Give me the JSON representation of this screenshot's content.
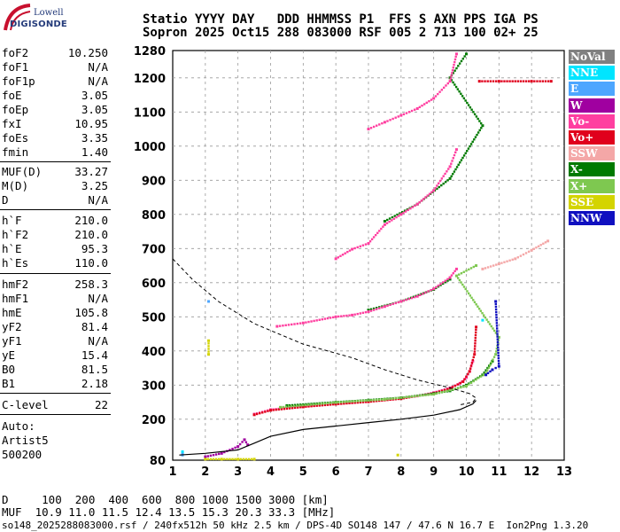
{
  "logo": {
    "top": "Lowell",
    "bottom": "DIGISONDE",
    "color": "#c8102e"
  },
  "header": {
    "line1": "Statio YYYY DAY   DDD HHMMSS P1  FFS S AXN PPS IGA PS",
    "line2": "Sopron 2025 Oct15 288 083000 RSF 005 2 713 100 02+ 25"
  },
  "params": {
    "group1": [
      {
        "k": "foF2",
        "v": "10.250"
      },
      {
        "k": "foF1",
        "v": "N/A"
      },
      {
        "k": "foF1p",
        "v": "N/A"
      },
      {
        "k": "foE",
        "v": "3.05"
      },
      {
        "k": "foEp",
        "v": "3.05"
      },
      {
        "k": "fxI",
        "v": "10.95"
      },
      {
        "k": "foEs",
        "v": "3.35"
      },
      {
        "k": "fmin",
        "v": "1.40"
      }
    ],
    "group2": [
      {
        "k": "MUF(D)",
        "v": "33.27"
      },
      {
        "k": "M(D)",
        "v": "3.25"
      },
      {
        "k": "D",
        "v": "N/A"
      }
    ],
    "group3": [
      {
        "k": "h`F",
        "v": "210.0"
      },
      {
        "k": "h`F2",
        "v": "210.0"
      },
      {
        "k": "h`E",
        "v": "95.3"
      },
      {
        "k": "h`Es",
        "v": "110.0"
      }
    ],
    "group4": [
      {
        "k": "hmF2",
        "v": "258.3"
      },
      {
        "k": "hmF1",
        "v": "N/A"
      },
      {
        "k": "hmE",
        "v": "105.8"
      },
      {
        "k": "yF2",
        "v": "81.4"
      },
      {
        "k": "yF1",
        "v": "N/A"
      },
      {
        "k": "yE",
        "v": "15.4"
      },
      {
        "k": "B0",
        "v": "81.5"
      },
      {
        "k": "B1",
        "v": "2.18"
      }
    ],
    "group5": [
      {
        "k": "C-level",
        "v": "22"
      }
    ]
  },
  "auto": {
    "line1": "Auto:",
    "line2": "Artist5",
    "line3": "500200"
  },
  "legend": [
    {
      "label": "NoVal",
      "color": "#808080"
    },
    {
      "label": "NNE",
      "color": "#00e5ff"
    },
    {
      "label": "E",
      "color": "#4da6ff"
    },
    {
      "label": "W",
      "color": "#a000a0"
    },
    {
      "label": "Vo-",
      "color": "#ff3fa0"
    },
    {
      "label": "Vo+",
      "color": "#e0001c"
    },
    {
      "label": "SSW",
      "color": "#f4a7a7"
    },
    {
      "label": "X-",
      "color": "#007a00"
    },
    {
      "label": "X+",
      "color": "#7ec850"
    },
    {
      "label": "SSE",
      "color": "#d4d400"
    },
    {
      "label": "NNW",
      "color": "#1010c0"
    }
  ],
  "footer": {
    "line1": "D     100  200  400  600  800 1000 1500 3000 [km]",
    "line2": "MUF  10.9 11.0 11.5 12.4 13.5 15.3 20.3 33.3 [MHz]",
    "line3": "so148_2025288083000.rsf / 240fx512h 50 kHz 2.5 km / DPS-4D SO148 147 / 47.6 N 16.7 E  Ion2Png 1.3.20"
  },
  "chart_data": {
    "type": "scatter",
    "xlim": [
      1,
      13
    ],
    "ylim": [
      80,
      1280
    ],
    "x_ticks": [
      1,
      2,
      3,
      4,
      5,
      6,
      7,
      8,
      9,
      10,
      11,
      12,
      13
    ],
    "y_ticks": [
      80,
      200,
      300,
      400,
      500,
      600,
      700,
      800,
      900,
      1000,
      1100,
      1200,
      1280
    ],
    "grid": "dashed",
    "legend_position": "right",
    "series": [
      {
        "name": "Vo-",
        "color": "#ff3fa0",
        "points": [
          [
            3.5,
            215
          ],
          [
            4,
            228
          ],
          [
            5,
            238
          ],
          [
            6,
            246
          ],
          [
            7,
            252
          ],
          [
            8,
            262
          ],
          [
            8.5,
            268
          ],
          [
            9,
            278
          ],
          [
            9.5,
            292
          ],
          [
            9.8,
            305
          ],
          [
            10,
            322
          ],
          [
            10.1,
            340
          ],
          [
            10.2,
            370
          ]
        ]
      },
      {
        "name": "Vo+",
        "color": "#e0001c",
        "points": [
          [
            3.5,
            213
          ],
          [
            4,
            226
          ],
          [
            5,
            236
          ],
          [
            6,
            244
          ],
          [
            7,
            251
          ],
          [
            8,
            260
          ],
          [
            9,
            276
          ],
          [
            9.5,
            290
          ],
          [
            9.9,
            310
          ],
          [
            10.1,
            340
          ],
          [
            10.25,
            390
          ],
          [
            10.3,
            470
          ],
          [
            10.4,
            1190
          ],
          [
            11,
            1190
          ],
          [
            12,
            1190
          ],
          [
            12.6,
            1190
          ]
        ]
      },
      {
        "name": "X-",
        "color": "#007a00",
        "points": [
          [
            4.5,
            240
          ],
          [
            6,
            250
          ],
          [
            7,
            256
          ],
          [
            8,
            263
          ],
          [
            9,
            275
          ],
          [
            9.5,
            283
          ],
          [
            10,
            300
          ],
          [
            10.5,
            330
          ],
          [
            10.8,
            370
          ],
          [
            7,
            520
          ],
          [
            8,
            545
          ],
          [
            9,
            580
          ],
          [
            9.5,
            610
          ],
          [
            7.5,
            780
          ],
          [
            8.5,
            830
          ],
          [
            9.5,
            905
          ],
          [
            10.5,
            1060
          ],
          [
            9.5,
            1200
          ],
          [
            10,
            1270
          ]
        ]
      },
      {
        "name": "X+",
        "color": "#7ec850",
        "points": [
          [
            4.3,
            235
          ],
          [
            6,
            249
          ],
          [
            7.5,
            258
          ],
          [
            9,
            273
          ],
          [
            10,
            297
          ],
          [
            10.6,
            335
          ],
          [
            10.9,
            390
          ],
          [
            11,
            440
          ],
          [
            9.7,
            620
          ],
          [
            10.3,
            650
          ]
        ]
      },
      {
        "name": "W",
        "color": "#a000a0",
        "points": [
          [
            2,
            90
          ],
          [
            2.5,
            100
          ],
          [
            3,
            120
          ],
          [
            3.2,
            140
          ],
          [
            3.3,
            125
          ]
        ]
      },
      {
        "name": "SSW",
        "color": "#f4a7a7",
        "points": [
          [
            10.5,
            640
          ],
          [
            11,
            655
          ],
          [
            11.5,
            670
          ],
          [
            12,
            695
          ],
          [
            12.5,
            722
          ]
        ]
      },
      {
        "name": "SSE",
        "color": "#d4d400",
        "points": [
          [
            2,
            83
          ],
          [
            2.5,
            83
          ],
          [
            3,
            83
          ],
          [
            3.5,
            83
          ],
          [
            2.1,
            390
          ],
          [
            2.1,
            430
          ],
          [
            7.9,
            95
          ]
        ]
      },
      {
        "name": "NNW",
        "color": "#1010c0",
        "points": [
          [
            10.6,
            330
          ],
          [
            10.8,
            345
          ],
          [
            11,
            355
          ],
          [
            10.9,
            545
          ]
        ]
      },
      {
        "name": "E",
        "color": "#4da6ff",
        "points": [
          [
            1.3,
            100
          ],
          [
            1.3,
            95
          ],
          [
            2.1,
            545
          ]
        ]
      },
      {
        "name": "NNE",
        "color": "#00e5ff",
        "points": [
          [
            1.3,
            105
          ],
          [
            10.5,
            490
          ]
        ]
      },
      {
        "name": "Vo- echo",
        "color": "#ff3fa0",
        "points": [
          [
            4.2,
            472
          ],
          [
            5,
            482
          ],
          [
            6,
            500
          ],
          [
            6.5,
            505
          ],
          [
            7,
            515
          ],
          [
            7.5,
            530
          ],
          [
            8,
            545
          ],
          [
            8.5,
            560
          ],
          [
            9,
            582
          ],
          [
            9.5,
            615
          ],
          [
            9.7,
            640
          ],
          [
            6,
            670
          ],
          [
            6.5,
            698
          ],
          [
            7,
            715
          ],
          [
            7.5,
            770
          ],
          [
            8,
            800
          ],
          [
            8.5,
            830
          ],
          [
            9,
            870
          ],
          [
            9.5,
            940
          ],
          [
            9.7,
            990
          ],
          [
            7,
            1050
          ],
          [
            7.5,
            1070
          ],
          [
            8,
            1090
          ],
          [
            8.5,
            1110
          ],
          [
            9,
            1140
          ],
          [
            9.5,
            1190
          ],
          [
            9.7,
            1270
          ]
        ]
      },
      {
        "name": "Black trace",
        "color": "#000000",
        "points": [
          [
            1.2,
            95
          ],
          [
            2,
            100
          ],
          [
            3,
            110
          ],
          [
            3.5,
            130
          ],
          [
            4,
            150
          ],
          [
            5,
            170
          ],
          [
            6,
            180
          ],
          [
            7,
            190
          ],
          [
            8,
            200
          ],
          [
            9,
            212
          ],
          [
            9.8,
            228
          ],
          [
            10.2,
            245
          ],
          [
            10.3,
            255
          ]
        ]
      },
      {
        "name": "Profile",
        "color": "#000000",
        "points": [
          [
            1,
            670
          ],
          [
            1.6,
            610
          ],
          [
            2.4,
            545
          ],
          [
            3.5,
            480
          ],
          [
            5,
            420
          ],
          [
            6.5,
            380
          ],
          [
            7.5,
            345
          ],
          [
            8.5,
            315
          ],
          [
            9.5,
            292
          ],
          [
            10.1,
            275
          ],
          [
            10.3,
            262
          ],
          [
            10.2,
            250
          ],
          [
            9.8,
            242
          ]
        ]
      }
    ]
  }
}
